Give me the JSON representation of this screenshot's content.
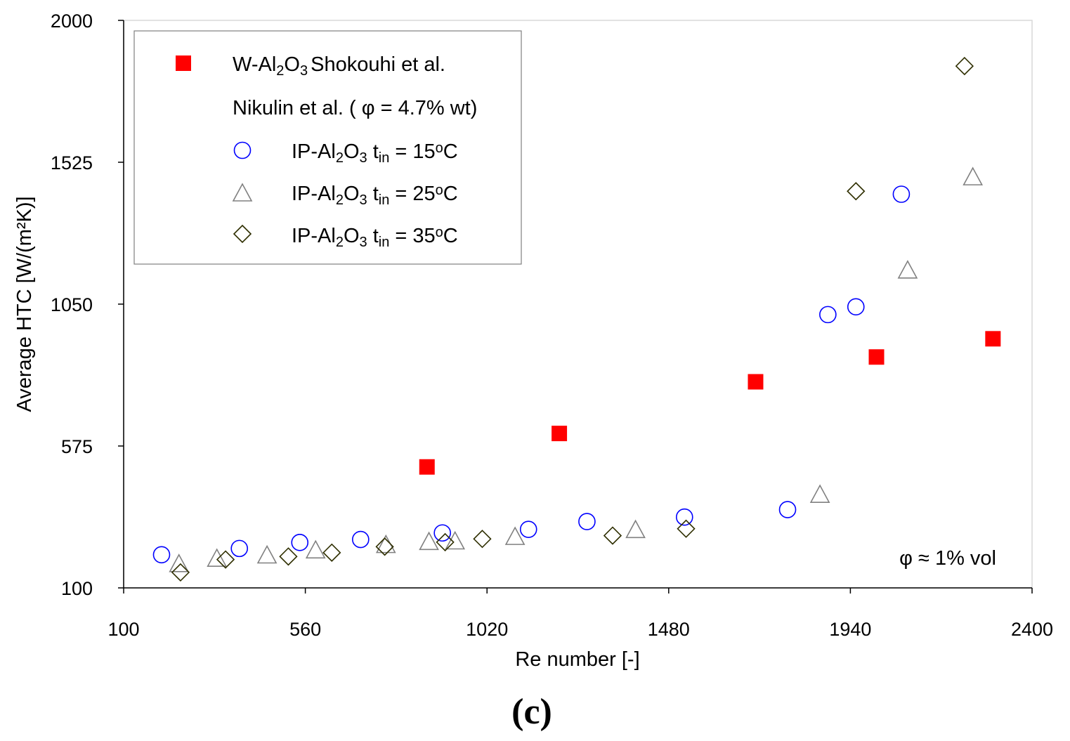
{
  "chart_data": {
    "type": "scatter",
    "title": "",
    "xlabel": "Re number [-]",
    "ylabel": "Average HTC [W/(m²K)]",
    "xlim": [
      100,
      2400
    ],
    "ylim": [
      100,
      2000
    ],
    "xticks": [
      100,
      560,
      1020,
      1480,
      1940,
      2400
    ],
    "yticks": [
      100,
      575,
      1050,
      1525,
      2000
    ],
    "grid": false,
    "legend_position": "top-left",
    "annotation": "φ ≈ 1% vol",
    "caption": "(c)",
    "series": [
      {
        "name": "W-Al2O3 Shokouhi et al.",
        "legend_main": "W-Al",
        "legend_sub1": "2",
        "legend_mid": "O",
        "legend_sub2": "3",
        "legend_rest": "Shokouhi et al.",
        "marker": "filled-square",
        "color": "#ff0000",
        "x": [
          868,
          1203,
          1700,
          2006,
          2301
        ],
        "y": [
          505,
          617,
          790,
          873,
          934
        ]
      },
      {
        "name": "Nikulin et al. ( φ = 4.7% wt)",
        "legend_header": "Nikulin et al. ( φ = 4.7% wt)"
      },
      {
        "name": "IP-Al2O3 tin = 15°C",
        "legend_label": "IP-Al2O3 tin = 15°C",
        "legend_pre": "IP-Al",
        "legend_sub1": "2",
        "legend_mid": "O",
        "legend_sub2": "3",
        "legend_t": " t",
        "legend_tsub": "in",
        "legend_eq": " = 15",
        "legend_sup": "o",
        "legend_unit": "C",
        "marker": "open-circle",
        "color": "#0000ff",
        "x": [
          196,
          393,
          546,
          700,
          907,
          1125,
          1273,
          1520,
          1781,
          1883,
          1954,
          2069
        ],
        "y": [
          211,
          232,
          252,
          262,
          284,
          296,
          322,
          337,
          362,
          1015,
          1041,
          1418
        ]
      },
      {
        "name": "IP-Al2O3 tin = 25°C",
        "legend_label": "IP-Al2O3 tin = 25°C",
        "legend_pre": "IP-Al",
        "legend_sub1": "2",
        "legend_mid": "O",
        "legend_sub2": "3",
        "legend_t": " t",
        "legend_tsub": "in",
        "legend_eq": " = 25",
        "legend_sup": "o",
        "legend_unit": "C",
        "marker": "open-triangle",
        "color": "#808080",
        "x": [
          240,
          336,
          463,
          586,
          764,
          873,
          939,
          1091,
          1396,
          1863,
          2085,
          2250
        ],
        "y": [
          178,
          196,
          207,
          224,
          242,
          252,
          254,
          269,
          292,
          410,
          1161,
          1473
        ]
      },
      {
        "name": "IP-Al2O3 tin = 35°C",
        "legend_label": "IP-Al2O3 tin = 35°C",
        "legend_pre": "IP-Al",
        "legend_sub1": "2",
        "legend_mid": "O",
        "legend_sub2": "3",
        "legend_t": " t",
        "legend_tsub": "in",
        "legend_eq": " = 35",
        "legend_sup": "o",
        "legend_unit": "C",
        "marker": "open-diamond",
        "color": "#2e2e00",
        "x": [
          244,
          358,
          517,
          627,
          761,
          914,
          1008,
          1338,
          1524,
          1954,
          2229
        ],
        "y": [
          152,
          195,
          205,
          218,
          238,
          253,
          264,
          275,
          298,
          1428,
          1847
        ]
      }
    ]
  }
}
